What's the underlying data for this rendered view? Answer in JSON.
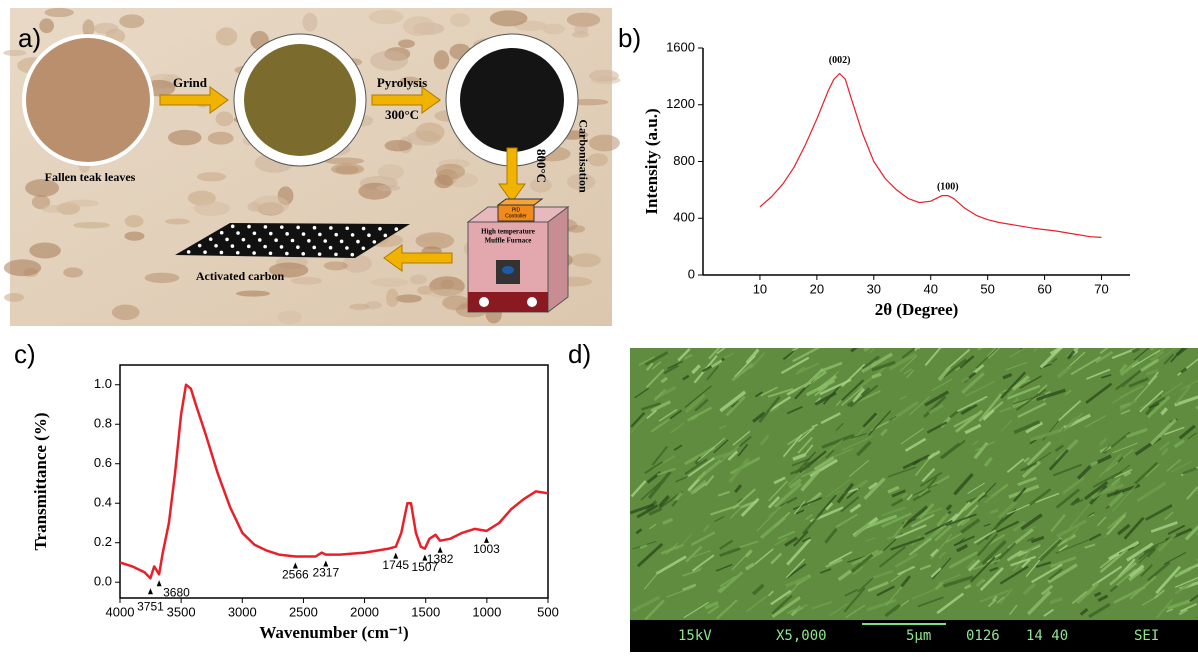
{
  "panel_labels": [
    "a)",
    "b)",
    "c)",
    "d)"
  ],
  "diagram": {
    "grind": "Grind",
    "pyrolysis": "Pyrolysis",
    "pyrolysis_temp": "300°C",
    "carbonisation": "Carbonisation",
    "carbonisation_temp": "800°C",
    "leaves": "Fallen teak leaves",
    "furnace_line1": "High temperature",
    "furnace_line2": "Muffle Furnace",
    "controller_line1": "PID",
    "controller_line2": "Controller",
    "product": "Activated carbon"
  },
  "chart_data": [
    {
      "type": "line",
      "xlabel": "2θ (Degree)",
      "ylabel": "Intensity (a.u.)",
      "color": "#e8202a",
      "x": [
        10,
        12,
        14,
        16,
        18,
        20,
        22,
        23,
        24,
        25,
        26,
        28,
        30,
        32,
        34,
        36,
        38,
        40,
        42,
        43,
        44,
        46,
        48,
        50,
        52,
        55,
        58,
        60,
        62,
        65,
        68,
        70
      ],
      "values": [
        480,
        550,
        640,
        760,
        920,
        1100,
        1300,
        1380,
        1420,
        1380,
        1250,
        1000,
        800,
        680,
        600,
        540,
        510,
        520,
        560,
        560,
        540,
        470,
        420,
        390,
        370,
        350,
        330,
        320,
        310,
        290,
        270,
        265
      ],
      "xlim": [
        0,
        75
      ],
      "ylim": [
        0,
        1600
      ],
      "xticks": [
        10,
        20,
        30,
        40,
        50,
        60,
        70
      ],
      "yticks": [
        0,
        400,
        800,
        1200,
        1600
      ],
      "annotations": [
        {
          "text": "(002)",
          "x": 24,
          "y": 1510
        },
        {
          "text": "(100)",
          "x": 43,
          "y": 620
        }
      ]
    },
    {
      "type": "line",
      "xlabel": "Wavenumber (cm⁻¹)",
      "ylabel": "Transmittance (%)",
      "color": "#e8202a",
      "x": [
        4000,
        3900,
        3800,
        3751,
        3720,
        3680,
        3650,
        3600,
        3550,
        3500,
        3460,
        3420,
        3380,
        3300,
        3200,
        3100,
        3000,
        2900,
        2800,
        2700,
        2566,
        2400,
        2350,
        2317,
        2200,
        2000,
        1900,
        1800,
        1745,
        1700,
        1650,
        1620,
        1580,
        1540,
        1507,
        1470,
        1420,
        1382,
        1300,
        1200,
        1100,
        1003,
        900,
        800,
        700,
        600,
        500
      ],
      "values": [
        0.1,
        0.08,
        0.05,
        0.02,
        0.08,
        0.04,
        0.15,
        0.3,
        0.55,
        0.85,
        1.0,
        0.98,
        0.9,
        0.75,
        0.55,
        0.38,
        0.25,
        0.19,
        0.16,
        0.14,
        0.13,
        0.13,
        0.15,
        0.14,
        0.14,
        0.15,
        0.16,
        0.17,
        0.18,
        0.25,
        0.4,
        0.4,
        0.25,
        0.18,
        0.17,
        0.22,
        0.24,
        0.21,
        0.22,
        0.25,
        0.27,
        0.26,
        0.3,
        0.37,
        0.42,
        0.46,
        0.45
      ],
      "xlim": [
        4000,
        500
      ],
      "ylim": [
        -0.08,
        1.1
      ],
      "xticks": [
        4000,
        3500,
        3000,
        2500,
        2000,
        1500,
        1000,
        500
      ],
      "yticks": [
        {
          "value": 0,
          "label": "0.0"
        },
        {
          "value": 0.2,
          "label": "0.2"
        },
        {
          "value": 0.4,
          "label": "0.4"
        },
        {
          "value": 0.6,
          "label": "0.6"
        },
        {
          "value": 0.8,
          "label": "0.8"
        },
        {
          "value": 1,
          "label": "1.0"
        }
      ],
      "peaks": [
        3751,
        3680,
        2566,
        2317,
        1745,
        1507,
        1382,
        1003
      ]
    }
  ],
  "sem": {
    "voltage": "15kV",
    "magnification": "X5,000",
    "scale": "5µm",
    "id": "0126",
    "time": "14 40",
    "mode": "SEI"
  }
}
